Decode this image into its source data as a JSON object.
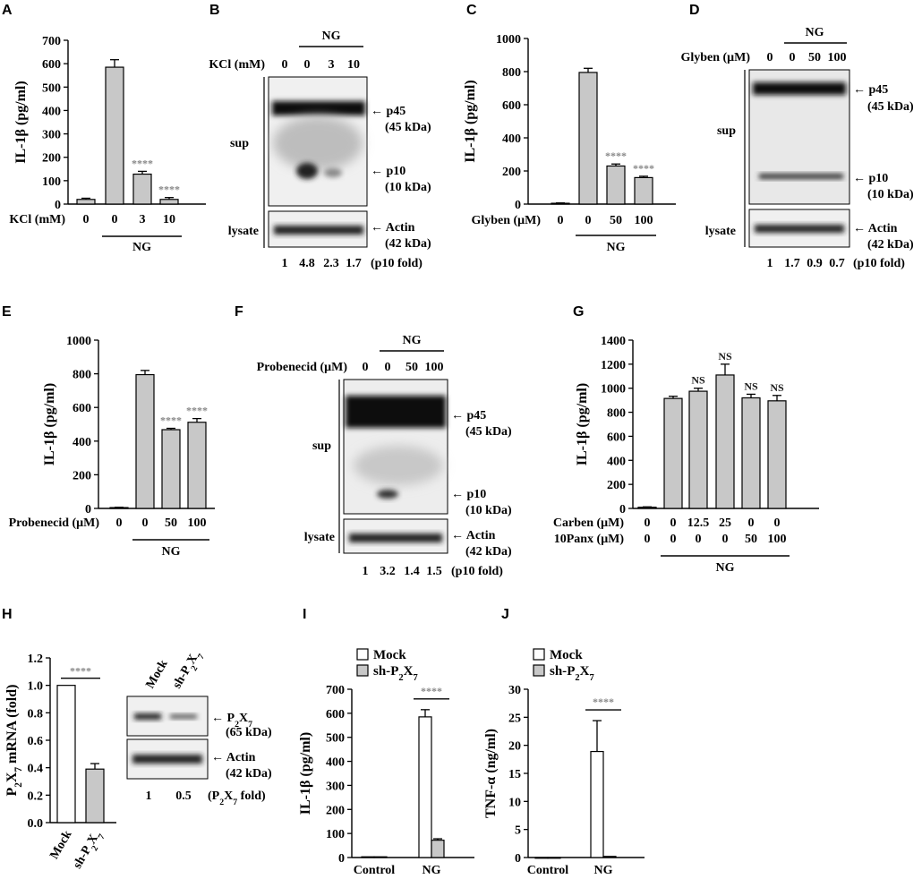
{
  "panel_labels": [
    "A",
    "B",
    "C",
    "D",
    "E",
    "F",
    "G",
    "H",
    "I",
    "J"
  ],
  "chart_data": [
    {
      "id": "A",
      "type": "bar",
      "ylabel": "IL-1β (pg/ml)",
      "ylim": [
        0,
        700
      ],
      "yticks": [
        "0",
        "100",
        "200",
        "300",
        "400",
        "500",
        "600",
        "700"
      ],
      "row_labels": [
        "KCl (mM)"
      ],
      "rows": [
        [
          "0",
          "0",
          "3",
          "10"
        ]
      ],
      "group_label": "NG",
      "group_span": [
        1,
        3
      ],
      "values": [
        20,
        585,
        128,
        20
      ],
      "errors": [
        5,
        32,
        12,
        8
      ],
      "colors": [
        "#c8c8c8",
        "#c8c8c8",
        "#c8c8c8",
        "#c8c8c8"
      ],
      "significance": [
        "",
        "",
        "****",
        "****"
      ]
    },
    {
      "id": "C",
      "type": "bar",
      "ylabel": "IL-1β (pg/ml)",
      "ylim": [
        0,
        1000
      ],
      "yticks": [
        "0",
        "200",
        "400",
        "600",
        "800",
        "1000"
      ],
      "row_labels": [
        "Glyben (μM)"
      ],
      "rows": [
        [
          "0",
          "0",
          "50",
          "100"
        ]
      ],
      "group_label": "NG",
      "group_span": [
        1,
        3
      ],
      "values": [
        5,
        795,
        230,
        160
      ],
      "errors": [
        2,
        25,
        12,
        8
      ],
      "colors": [
        "#c8c8c8",
        "#c8c8c8",
        "#c8c8c8",
        "#c8c8c8"
      ],
      "significance": [
        "",
        "",
        "****",
        "****"
      ]
    },
    {
      "id": "E",
      "type": "bar",
      "ylabel": "IL-1β (pg/ml)",
      "ylim": [
        0,
        1000
      ],
      "yticks": [
        "0",
        "200",
        "400",
        "600",
        "800",
        "1000"
      ],
      "row_labels": [
        "Probenecid (μM)"
      ],
      "rows": [
        [
          "0",
          "0",
          "50",
          "100"
        ]
      ],
      "group_label": "NG",
      "group_span": [
        1,
        3
      ],
      "values": [
        5,
        795,
        468,
        512
      ],
      "errors": [
        2,
        25,
        8,
        22
      ],
      "colors": [
        "#c8c8c8",
        "#c8c8c8",
        "#c8c8c8",
        "#c8c8c8"
      ],
      "significance": [
        "",
        "",
        "****",
        "****"
      ]
    },
    {
      "id": "G",
      "type": "bar",
      "ylabel": "IL-1β (pg/ml)",
      "ylim": [
        0,
        1400
      ],
      "yticks": [
        "0",
        "200",
        "400",
        "600",
        "800",
        "1000",
        "1200",
        "1400"
      ],
      "row_labels": [
        "Carben (μM)",
        "10Panx (μM)"
      ],
      "rows": [
        [
          "0",
          "0",
          "12.5",
          "25",
          "0",
          "0"
        ],
        [
          "0",
          "0",
          "0",
          "0",
          "50",
          "100"
        ]
      ],
      "group_label": "NG",
      "group_span": [
        1,
        5
      ],
      "values": [
        10,
        915,
        975,
        1110,
        920,
        895
      ],
      "errors": [
        3,
        18,
        25,
        90,
        30,
        45
      ],
      "colors": [
        "#c8c8c8",
        "#c8c8c8",
        "#c8c8c8",
        "#c8c8c8",
        "#c8c8c8",
        "#c8c8c8"
      ],
      "significance": [
        "",
        "",
        "NS",
        "NS",
        "NS",
        "NS"
      ]
    },
    {
      "id": "H",
      "type": "bar",
      "ylabel": "P2X7 mRNA (fold)",
      "ylim": [
        0,
        1.2
      ],
      "yticks": [
        "0.0",
        "0.2",
        "0.4",
        "0.6",
        "0.8",
        "1.0",
        "1.2"
      ],
      "categories": [
        "Mock",
        "sh-P2X7"
      ],
      "values": [
        1.0,
        0.39
      ],
      "errors": [
        0,
        0.04
      ],
      "colors": [
        "#ffffff",
        "#c8c8c8"
      ],
      "bracket": "****"
    },
    {
      "id": "I",
      "type": "bar",
      "ylabel": "IL-1β (pg/ml)",
      "ylim": [
        0,
        700
      ],
      "yticks": [
        "0",
        "100",
        "200",
        "300",
        "400",
        "500",
        "600",
        "700"
      ],
      "categories": [
        "Control",
        "NG"
      ],
      "series": [
        {
          "name": "Mock",
          "values": [
            3,
            585
          ],
          "errors": [
            0,
            30
          ],
          "color": "#ffffff"
        },
        {
          "name": "sh-P2X7",
          "values": [
            3,
            72
          ],
          "errors": [
            0,
            6
          ],
          "color": "#c8c8c8"
        }
      ],
      "bracket": "****"
    },
    {
      "id": "J",
      "type": "bar",
      "ylabel": "TNF-α (ng/ml)",
      "ylim": [
        0,
        30
      ],
      "yticks": [
        "0",
        "5",
        "10",
        "15",
        "20",
        "25",
        "30"
      ],
      "categories": [
        "Control",
        "NG"
      ],
      "series": [
        {
          "name": "Mock",
          "values": [
            0,
            18.9
          ],
          "errors": [
            0,
            5.5
          ],
          "color": "#ffffff"
        },
        {
          "name": "sh-P2X7",
          "values": [
            0,
            0.2
          ],
          "errors": [
            0,
            0
          ],
          "color": "#c8c8c8"
        }
      ],
      "bracket": "****"
    }
  ],
  "blots": {
    "B": {
      "treatment_label": "KCl (mM)",
      "lanes": [
        "0",
        "0",
        "3",
        "10"
      ],
      "group_label": "NG",
      "sup_label": "sup",
      "lysate_label": "lysate",
      "band_labels": [
        "← p45",
        "(45 kDa)",
        "← p10",
        "(10 kDa)"
      ],
      "actin_labels": [
        "← Actin",
        "(42 kDa)"
      ],
      "quant": [
        "1",
        "4.8",
        "2.3",
        "1.7"
      ],
      "quant_label": "(p10 fold)"
    },
    "D": {
      "treatment_label": "Glyben (μM)",
      "lanes": [
        "0",
        "0",
        "50",
        "100"
      ],
      "group_label": "NG",
      "sup_label": "sup",
      "lysate_label": "lysate",
      "band_labels": [
        "← p45",
        "(45 kDa)",
        "← p10",
        "(10 kDa)"
      ],
      "actin_labels": [
        "← Actin",
        "(42 kDa)"
      ],
      "quant": [
        "1",
        "1.7",
        "0.9",
        "0.7"
      ],
      "quant_label": "(p10 fold)"
    },
    "F": {
      "treatment_label": "Probenecid (μM)",
      "lanes": [
        "0",
        "0",
        "50",
        "100"
      ],
      "group_label": "NG",
      "sup_label": "sup",
      "lysate_label": "lysate",
      "band_labels": [
        "← p45",
        "(45 kDa)",
        "← p10",
        "(10 kDa)"
      ],
      "actin_labels": [
        "← Actin",
        "(42 kDa)"
      ],
      "quant": [
        "1",
        "3.2",
        "1.4",
        "1.5"
      ],
      "quant_label": "(p10 fold)"
    },
    "H": {
      "lanes": [
        "Mock",
        "sh-P2X7"
      ],
      "band_labels": [
        "← P2X7",
        "(65 kDa)"
      ],
      "actin_labels": [
        "← Actin",
        "(42 kDa)"
      ],
      "quant": [
        "1",
        "0.5"
      ],
      "quant_label": "(P2X7 fold)"
    }
  }
}
